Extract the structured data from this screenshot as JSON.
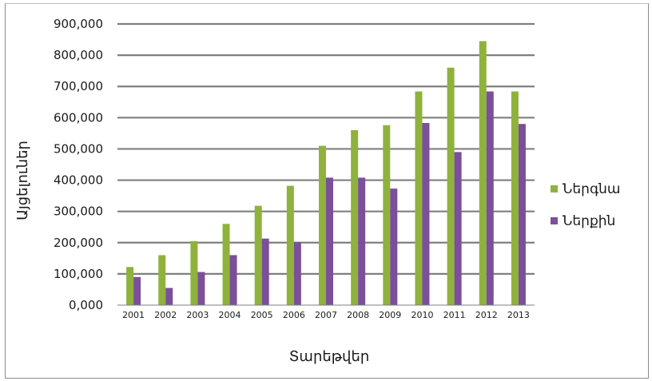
{
  "chart_data": {
    "type": "bar",
    "title": "",
    "xlabel": "Տարեթվեր",
    "ylabel": "Այցելուներ",
    "categories": [
      "2001",
      "2002",
      "2003",
      "2004",
      "2005",
      "2006",
      "2007",
      "2008",
      "2009",
      "2010",
      "2011",
      "2012",
      "2013"
    ],
    "series": [
      {
        "name": "Ներգնա",
        "color": "#8fb23c",
        "values": [
          122000,
          160000,
          205000,
          260000,
          318000,
          382000,
          510000,
          560000,
          576000,
          684000,
          760000,
          845000,
          684000
        ]
      },
      {
        "name": "Ներքին",
        "color": "#7b4f9a",
        "values": [
          90000,
          55000,
          106000,
          160000,
          213000,
          202000,
          408000,
          408000,
          373000,
          583000,
          490000,
          684000,
          580000
        ]
      }
    ],
    "yticks": [
      "0,000",
      "100,000",
      "200,000",
      "300,000",
      "400,000",
      "500,000",
      "600,000",
      "700,000",
      "800,000",
      "900,000"
    ],
    "ylim": [
      0,
      900000
    ],
    "grid": true,
    "legend": "right"
  }
}
